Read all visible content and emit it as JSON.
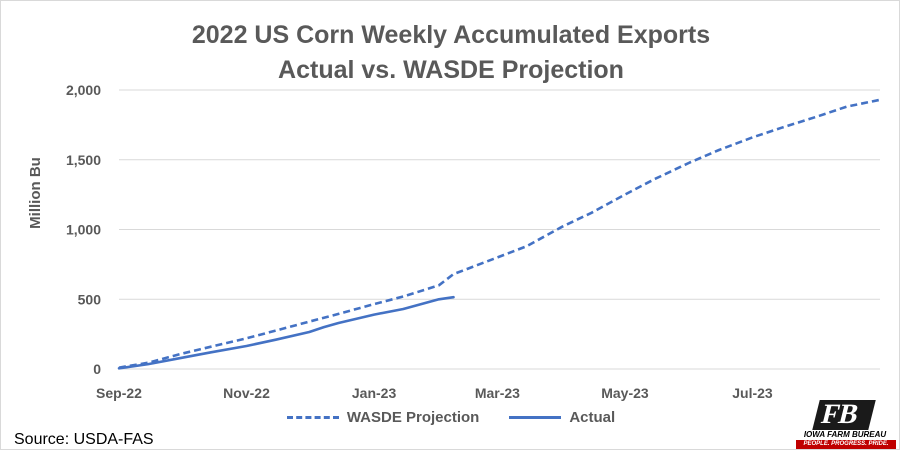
{
  "chart_data": {
    "type": "line",
    "title": "2022 US Corn Weekly Accumulated Exports",
    "subtitle": "Actual vs. WASDE Projection",
    "xlabel": "",
    "ylabel": "Million Bu",
    "ylim": [
      0,
      2000
    ],
    "yticks": [
      0,
      500,
      1000,
      1500,
      2000
    ],
    "ytick_labels": [
      "0",
      "500",
      "1,000",
      "1,500",
      "2,000"
    ],
    "xlim": [
      "2022-09-01",
      "2023-08-31"
    ],
    "xticks": [
      "2022-09-01",
      "2022-11-01",
      "2023-01-01",
      "2023-03-01",
      "2023-05-01",
      "2023-07-01"
    ],
    "xtick_labels": [
      "Sep-22",
      "Nov-22",
      "Jan-23",
      "Mar-23",
      "May-23",
      "Jul-23"
    ],
    "grid": "horizontal",
    "legend": "bottom",
    "series": [
      {
        "name": "WASDE Projection",
        "style": "dashed",
        "color": "#4472c4",
        "points": [
          [
            "2022-09-01",
            10
          ],
          [
            "2022-09-15",
            45
          ],
          [
            "2022-10-01",
            110
          ],
          [
            "2022-10-15",
            160
          ],
          [
            "2022-11-01",
            220
          ],
          [
            "2022-11-15",
            275
          ],
          [
            "2022-12-01",
            340
          ],
          [
            "2022-12-15",
            395
          ],
          [
            "2023-01-01",
            465
          ],
          [
            "2023-01-15",
            520
          ],
          [
            "2023-02-01",
            600
          ],
          [
            "2023-02-08",
            680
          ],
          [
            "2023-02-15",
            720
          ],
          [
            "2023-03-01",
            800
          ],
          [
            "2023-03-15",
            880
          ],
          [
            "2023-04-01",
            1020
          ],
          [
            "2023-04-15",
            1120
          ],
          [
            "2023-05-01",
            1250
          ],
          [
            "2023-05-15",
            1360
          ],
          [
            "2023-06-01",
            1480
          ],
          [
            "2023-06-15",
            1570
          ],
          [
            "2023-07-01",
            1660
          ],
          [
            "2023-07-15",
            1730
          ],
          [
            "2023-08-01",
            1810
          ],
          [
            "2023-08-15",
            1880
          ],
          [
            "2023-08-31",
            1930
          ]
        ]
      },
      {
        "name": "Actual",
        "style": "solid",
        "color": "#4472c4",
        "points": [
          [
            "2022-09-01",
            5
          ],
          [
            "2022-09-15",
            35
          ],
          [
            "2022-10-01",
            80
          ],
          [
            "2022-10-15",
            120
          ],
          [
            "2022-11-01",
            165
          ],
          [
            "2022-11-15",
            210
          ],
          [
            "2022-12-01",
            265
          ],
          [
            "2022-12-08",
            300
          ],
          [
            "2022-12-15",
            330
          ],
          [
            "2023-01-01",
            390
          ],
          [
            "2023-01-15",
            430
          ],
          [
            "2023-02-01",
            500
          ],
          [
            "2023-02-08",
            515
          ]
        ]
      }
    ]
  },
  "source": "Source: USDA-FAS",
  "logo": {
    "mark": "FB",
    "name": "IOWA FARM BUREAU",
    "tagline": "PEOPLE. PROGRESS. PRIDE."
  }
}
